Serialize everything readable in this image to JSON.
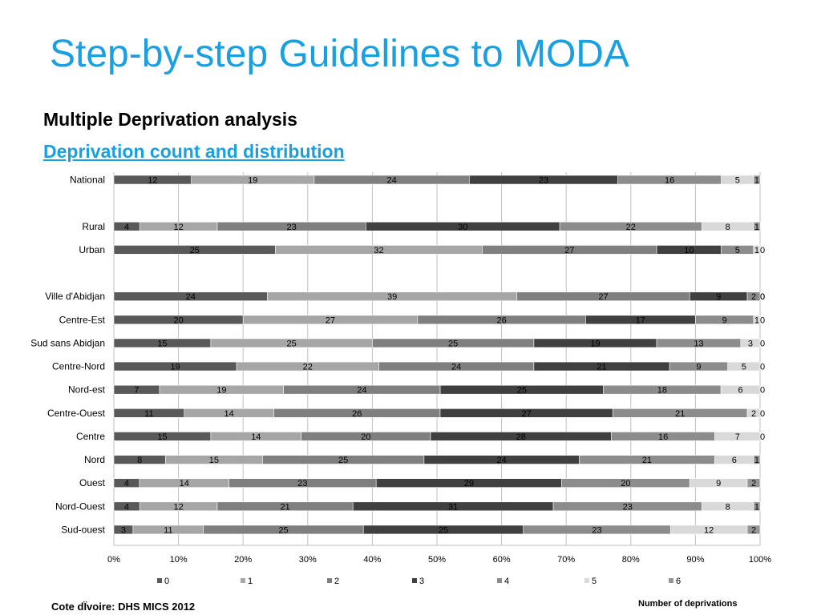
{
  "slide": {
    "title": "Step-by-step Guidelines to MODA",
    "subtitle": "Multiple Deprivation analysis",
    "section_link": "Deprivation count and distribution",
    "source": "Cote dÏvoire: DHS MICS 2012",
    "x_note": "Number of deprivations"
  },
  "chart_data": {
    "type": "bar",
    "orientation": "horizontal",
    "stacked": "percent",
    "title": "",
    "xlabel": "",
    "ylabel": "",
    "xlim": [
      0,
      100
    ],
    "x_ticks": [
      "0%",
      "10%",
      "20%",
      "30%",
      "40%",
      "50%",
      "60%",
      "70%",
      "80%",
      "90%",
      "100%"
    ],
    "grid": true,
    "legend_position": "bottom",
    "categories": [
      "National",
      "",
      "Rural",
      "Urban",
      "",
      "Ville d'Abidjan",
      "Centre-Est",
      "Sud sans Abidjan",
      "Centre-Nord",
      "Nord-est",
      "Centre-Ouest",
      "Centre",
      "Nord",
      "Ouest",
      "Nord-Ouest",
      "Sud-ouest"
    ],
    "series": [
      {
        "name": "0",
        "color": "#595959",
        "values": [
          12,
          null,
          4,
          25,
          null,
          24,
          20,
          15,
          19,
          7,
          11,
          15,
          8,
          4,
          4,
          3
        ]
      },
      {
        "name": "1",
        "color": "#a6a6a6",
        "values": [
          19,
          null,
          12,
          32,
          null,
          39,
          27,
          25,
          22,
          19,
          14,
          14,
          15,
          14,
          12,
          11
        ]
      },
      {
        "name": "2",
        "color": "#7f7f7f",
        "values": [
          24,
          null,
          23,
          27,
          null,
          27,
          26,
          25,
          24,
          24,
          26,
          20,
          25,
          23,
          21,
          25
        ]
      },
      {
        "name": "3",
        "color": "#404040",
        "values": [
          23,
          null,
          30,
          10,
          null,
          9,
          17,
          19,
          21,
          25,
          27,
          28,
          24,
          29,
          31,
          25
        ]
      },
      {
        "name": "4",
        "color": "#8c8c8c",
        "values": [
          16,
          null,
          22,
          5,
          null,
          2,
          9,
          13,
          9,
          18,
          21,
          16,
          21,
          20,
          23,
          23
        ]
      },
      {
        "name": "5",
        "color": "#d9d9d9",
        "values": [
          5,
          null,
          8,
          1,
          null,
          0,
          1,
          3,
          5,
          6,
          2,
          7,
          6,
          9,
          8,
          12
        ]
      },
      {
        "name": "6",
        "color": "#969696",
        "values": [
          1,
          null,
          1,
          0,
          null,
          0,
          0,
          0,
          0,
          0,
          0,
          0,
          1,
          2,
          1,
          2
        ]
      }
    ]
  }
}
